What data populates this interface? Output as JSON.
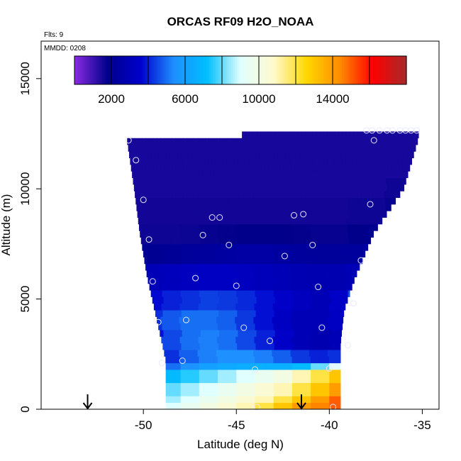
{
  "chart_data": {
    "type": "heatmap",
    "title": "ORCAS RF09 H2O_NOAA",
    "annotations": {
      "flights": "Flts: 9",
      "date": "MMDD: 0208"
    },
    "xlabel": "Latitude (deg N)",
    "ylabel": "Altitude (m)",
    "xlim": [
      -55.5,
      -34.1
    ],
    "ylim": [
      0,
      16700
    ],
    "x_ticks": [
      -50,
      -45,
      -40,
      -35
    ],
    "x_tick_labels": [
      "-50",
      "-45",
      "-40",
      "-35"
    ],
    "y_ticks": [
      0,
      5000,
      10000,
      15000
    ],
    "y_tick_labels": [
      "0",
      "5000",
      "10000",
      "15000"
    ],
    "colorbar": {
      "min": 0,
      "max": 18000,
      "ticks": [
        2000,
        6000,
        10000,
        14000
      ],
      "tick_labels": [
        "2000",
        "6000",
        "10000",
        "14000"
      ],
      "segment_breaks": [
        2000,
        4000,
        6000,
        8000,
        10000,
        12000,
        14000,
        16000
      ],
      "colors": [
        "#8a2be2",
        "#00008b",
        "#0000cd",
        "#1e90ff",
        "#00bfff",
        "#e0ffff",
        "#fffacd",
        "#ffd700",
        "#ff8c00",
        "#ff0000",
        "#a52a2a"
      ]
    },
    "profile": {
      "lat_edges": [
        -50.9,
        -50.5,
        -50.2,
        -49.8,
        -49.4,
        -49.0,
        -48.8,
        -48.8,
        -48.8,
        -48.8
      ],
      "alt_levels": [
        12300,
        10000,
        8000,
        6000,
        4500,
        3000,
        2200,
        1500,
        800,
        0
      ],
      "right_edges": [
        -35.2,
        -36.0,
        -37.6,
        -38.6,
        -39.2,
        -39.4,
        -39.4,
        -39.4,
        -39.4,
        -39.4
      ],
      "upper_step": {
        "lat": -44.6,
        "alt_left": 12300,
        "alt_right": 12600
      }
    },
    "field_values": {
      "alt_bins": [
        12000,
        11000,
        10000,
        9000,
        8000,
        7000,
        6000,
        5000,
        4000,
        3000,
        2500,
        2000,
        1500,
        1000,
        500,
        250
      ],
      "lat_bins": [
        -50.5,
        -49.5,
        -48.5,
        -47.5,
        -46.5,
        -45.5,
        -44.5,
        -43.5,
        -42.5,
        -41.5,
        -40.5,
        -39.5,
        -38.5,
        -37.5,
        -36.5,
        -35.5
      ],
      "values": [
        [
          1500,
          1500,
          1500,
          1500,
          1500,
          1500,
          1500,
          1500,
          1500,
          1500,
          1500,
          1500,
          1500,
          1500,
          1500,
          1500
        ],
        [
          1500,
          1500,
          1500,
          1500,
          1500,
          1500,
          1500,
          1500,
          1500,
          1500,
          1500,
          1500,
          1500,
          1500,
          1500,
          1500
        ],
        [
          1500,
          1500,
          1500,
          1500,
          1500,
          1500,
          1500,
          1500,
          1500,
          1500,
          1500,
          1500,
          1500,
          1500,
          1600,
          1600
        ],
        [
          1550,
          1550,
          1550,
          1550,
          1550,
          1550,
          1550,
          1550,
          1550,
          1550,
          1550,
          1550,
          1600,
          1600,
          1700,
          1700
        ],
        [
          1600,
          1600,
          1600,
          1650,
          1700,
          1750,
          1800,
          1800,
          1800,
          1750,
          1700,
          1700,
          1800,
          1900,
          2000,
          2000
        ],
        [
          1900,
          2000,
          2100,
          2200,
          2300,
          2400,
          2500,
          2500,
          2400,
          2300,
          2200,
          2200,
          2300,
          2400,
          2500,
          2500
        ],
        [
          2800,
          3000,
          3100,
          3200,
          3300,
          3300,
          3200,
          3100,
          3000,
          2900,
          2800,
          2800,
          3000,
          3200,
          3300,
          3300
        ],
        [
          3300,
          3700,
          4000,
          4200,
          4400,
          4300,
          4100,
          3800,
          3500,
          3200,
          3000,
          3400,
          4500,
          6000,
          6000,
          6000
        ],
        [
          3600,
          4200,
          4700,
          5000,
          5000,
          4800,
          4300,
          3800,
          3300,
          3000,
          3000,
          3300,
          4000,
          5000,
          5000,
          5000
        ],
        [
          3300,
          3800,
          4500,
          5000,
          5200,
          5000,
          4500,
          4000,
          3500,
          3000,
          2800,
          3000,
          3500,
          4000,
          4000,
          4000
        ],
        [
          3000,
          3500,
          4200,
          4800,
          5200,
          5400,
          5400,
          5200,
          4800,
          4300,
          4000,
          4200,
          4800,
          5000,
          5000,
          5000
        ],
        [
          4000,
          4500,
          5000,
          5500,
          6000,
          6300,
          6500,
          6600,
          6600,
          7000,
          8000,
          9000,
          9000,
          9000,
          9000,
          9000
        ],
        [
          6000,
          6500,
          7000,
          7500,
          8000,
          8500,
          9000,
          9500,
          10000,
          11000,
          12000,
          13000,
          13000,
          13000,
          13000,
          13000
        ],
        [
          7000,
          7500,
          8000,
          8500,
          9000,
          9500,
          10000,
          10500,
          11000,
          12000,
          13000,
          14000,
          14000,
          14000,
          14000,
          14000
        ],
        [
          7500,
          8000,
          8500,
          9000,
          9500,
          10000,
          10500,
          11000,
          12000,
          13000,
          14000,
          15000,
          15000,
          15000,
          15000,
          15000
        ],
        [
          8000,
          8500,
          9000,
          9500,
          10000,
          10500,
          11000,
          12000,
          13000,
          14000,
          14500,
          15000,
          15000,
          15000,
          15000,
          15000
        ]
      ]
    },
    "sample_points": [
      {
        "x": -50.8,
        "y": 12200
      },
      {
        "x": -50.4,
        "y": 11300
      },
      {
        "x": -50.0,
        "y": 9500
      },
      {
        "x": -49.7,
        "y": 7700
      },
      {
        "x": -49.5,
        "y": 5800
      },
      {
        "x": -49.2,
        "y": 3950
      },
      {
        "x": -49.0,
        "y": 2100
      },
      {
        "x": -47.9,
        "y": 2200
      },
      {
        "x": -47.7,
        "y": 4050
      },
      {
        "x": -47.2,
        "y": 5950
      },
      {
        "x": -46.8,
        "y": 7900
      },
      {
        "x": -46.3,
        "y": 8700
      },
      {
        "x": -45.9,
        "y": 8700
      },
      {
        "x": -45.4,
        "y": 7450
      },
      {
        "x": -45.0,
        "y": 5600
      },
      {
        "x": -44.6,
        "y": 3700
      },
      {
        "x": -44.0,
        "y": 1800
      },
      {
        "x": -43.2,
        "y": 3100
      },
      {
        "x": -42.4,
        "y": 6950
      },
      {
        "x": -41.9,
        "y": 8800
      },
      {
        "x": -41.4,
        "y": 8850
      },
      {
        "x": -40.9,
        "y": 7450
      },
      {
        "x": -40.6,
        "y": 5550
      },
      {
        "x": -40.4,
        "y": 3700
      },
      {
        "x": -40.0,
        "y": 1850
      },
      {
        "x": -39.0,
        "y": 2900
      },
      {
        "x": -38.7,
        "y": 4800
      },
      {
        "x": -38.3,
        "y": 6750
      },
      {
        "x": -37.8,
        "y": 9300
      },
      {
        "x": -37.6,
        "y": 12200
      },
      {
        "x": -38.0,
        "y": 12650
      },
      {
        "x": -37.7,
        "y": 12650
      },
      {
        "x": -37.3,
        "y": 12650
      },
      {
        "x": -36.9,
        "y": 12650
      },
      {
        "x": -36.6,
        "y": 12650
      },
      {
        "x": -36.2,
        "y": 12650
      },
      {
        "x": -35.9,
        "y": 12650
      },
      {
        "x": -35.6,
        "y": 12650
      },
      {
        "x": -35.3,
        "y": 12650
      },
      {
        "x": -43.9,
        "y": 100
      },
      {
        "x": -39.8,
        "y": 100
      }
    ],
    "markers": [
      {
        "name": "arrow",
        "x": -53.0
      },
      {
        "name": "arrow",
        "x": -41.5
      }
    ]
  }
}
